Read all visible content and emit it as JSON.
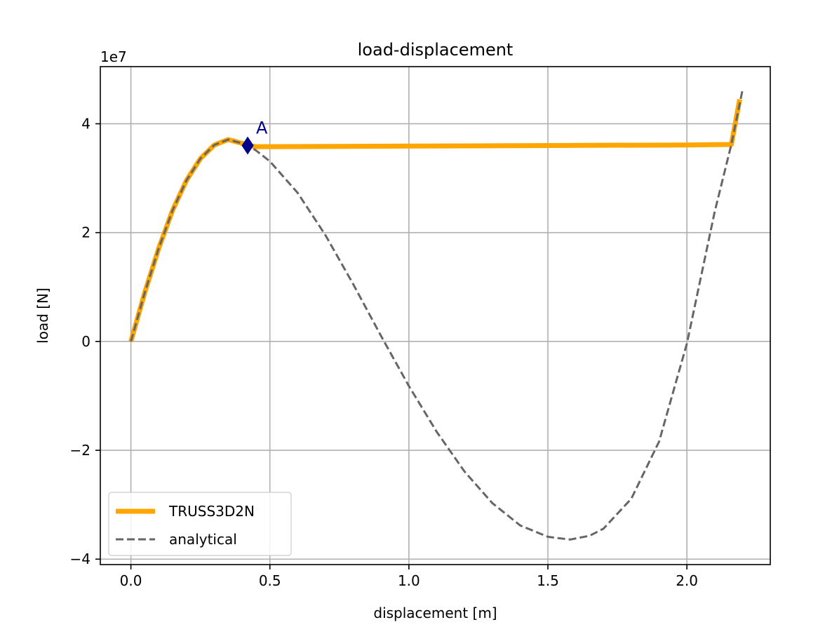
{
  "chart_data": {
    "type": "line",
    "title": "load-displacement",
    "xlabel": "displacement [m]",
    "ylabel": "load [N]",
    "y_offset_label": "1e7",
    "xlim": [
      -0.11,
      2.3
    ],
    "ylim": [
      -4.1,
      5.05
    ],
    "y_scale": 10000000,
    "xticks": [
      0.0,
      0.5,
      1.0,
      1.5,
      2.0
    ],
    "xtick_labels": [
      "0.0",
      "0.5",
      "1.0",
      "1.5",
      "2.0"
    ],
    "yticks": [
      -4,
      -2,
      0,
      2,
      4
    ],
    "ytick_labels": [
      "−4",
      "−2",
      "0",
      "2",
      "4"
    ],
    "grid": true,
    "legend_position": "lower-left",
    "series": [
      {
        "name": "TRUSS3D2N",
        "color": "#FFA500",
        "style": "solid",
        "x": [
          0.0,
          0.05,
          0.1,
          0.15,
          0.2,
          0.25,
          0.3,
          0.35,
          0.4,
          0.42,
          0.45,
          0.5,
          1.0,
          1.5,
          2.0,
          2.16,
          2.19
        ],
        "y": [
          0.0,
          0.9,
          1.71,
          2.41,
          2.96,
          3.36,
          3.61,
          3.71,
          3.64,
          3.6,
          3.58,
          3.58,
          3.59,
          3.6,
          3.61,
          3.62,
          4.45
        ]
      },
      {
        "name": "analytical",
        "color": "#666666",
        "style": "dashed",
        "x": [
          0.0,
          0.05,
          0.1,
          0.15,
          0.2,
          0.25,
          0.3,
          0.35,
          0.4,
          0.42,
          0.45,
          0.5,
          0.6,
          0.7,
          0.8,
          0.9,
          1.0,
          1.1,
          1.2,
          1.3,
          1.4,
          1.5,
          1.58,
          1.65,
          1.7,
          1.8,
          1.9,
          2.0,
          2.1,
          2.16,
          2.2
        ],
        "y": [
          0.0,
          0.9,
          1.71,
          2.41,
          2.96,
          3.36,
          3.61,
          3.71,
          3.64,
          3.6,
          3.51,
          3.31,
          2.73,
          1.95,
          1.05,
          0.1,
          -0.82,
          -1.66,
          -2.39,
          -2.97,
          -3.38,
          -3.59,
          -3.64,
          -3.57,
          -3.44,
          -2.89,
          -1.84,
          -0.04,
          2.38,
          3.62,
          4.62
        ]
      }
    ],
    "markers": [
      {
        "x": 0.42,
        "y": 3.6,
        "label": "A",
        "color": "#00008B",
        "shape": "diamond"
      }
    ]
  }
}
